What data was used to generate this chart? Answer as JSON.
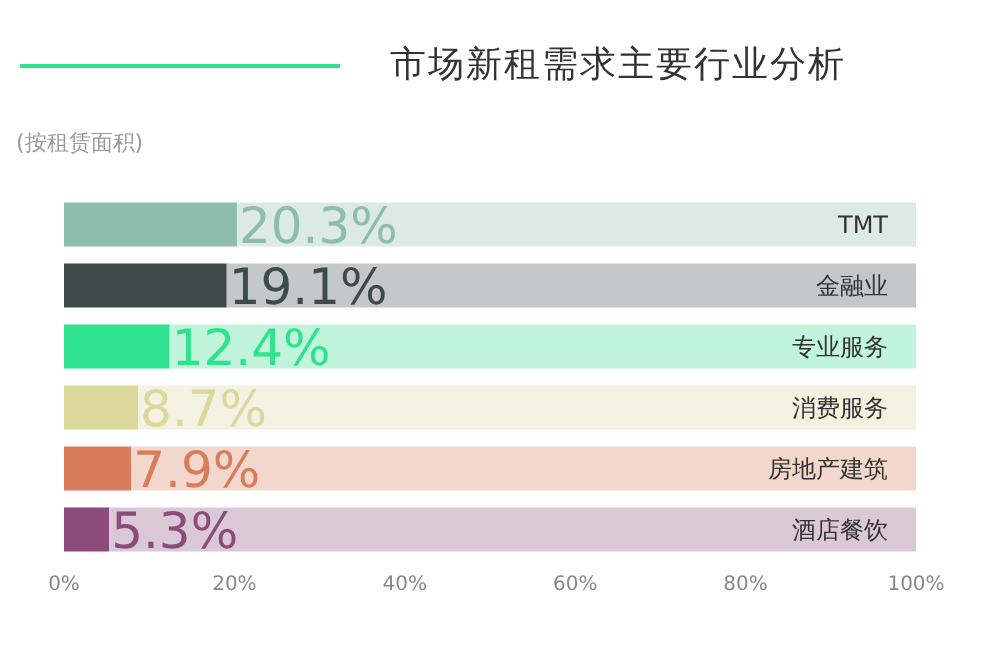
{
  "chart_data": {
    "type": "bar",
    "orientation": "horizontal",
    "stacked": true,
    "title": "市场新租需求主要行业分析",
    "subtitle": "(按租赁面积)",
    "categories": [
      "TMT",
      "金融业",
      "专业服务",
      "消费服务",
      "房地产建筑",
      "酒店餐饮"
    ],
    "series": [
      {
        "values": [
          20.3,
          19.1,
          12.4,
          8.7,
          7.9,
          5.3
        ],
        "colors": [
          "#8dbdac",
          "#3e4b4b",
          "#2fe38e",
          "#dcd79a",
          "#d97c5c",
          "#8b4b7b"
        ],
        "value_labels": [
          "20.3%",
          "19.1%",
          "12.4%",
          "8.7%",
          "7.9%",
          "5.3%"
        ]
      },
      {
        "values": [
          79.7,
          80.9,
          87.6,
          91.3,
          92.1,
          94.7
        ],
        "colors": [
          "#dde9e4",
          "#c5c8c8",
          "#c0f5dc",
          "#f3f1e1",
          "#f3d7cd",
          "#dbc8d7"
        ]
      }
    ],
    "xlim": [
      0,
      100
    ],
    "xticks": [
      {
        "value": 0,
        "label": "0%"
      },
      {
        "value": 20,
        "label": "20%"
      },
      {
        "value": 40,
        "label": "40%"
      },
      {
        "value": 60,
        "label": "60%"
      },
      {
        "value": 80,
        "label": "80%"
      },
      {
        "value": 100,
        "label": "100%"
      }
    ],
    "grid": false,
    "legend": false
  }
}
